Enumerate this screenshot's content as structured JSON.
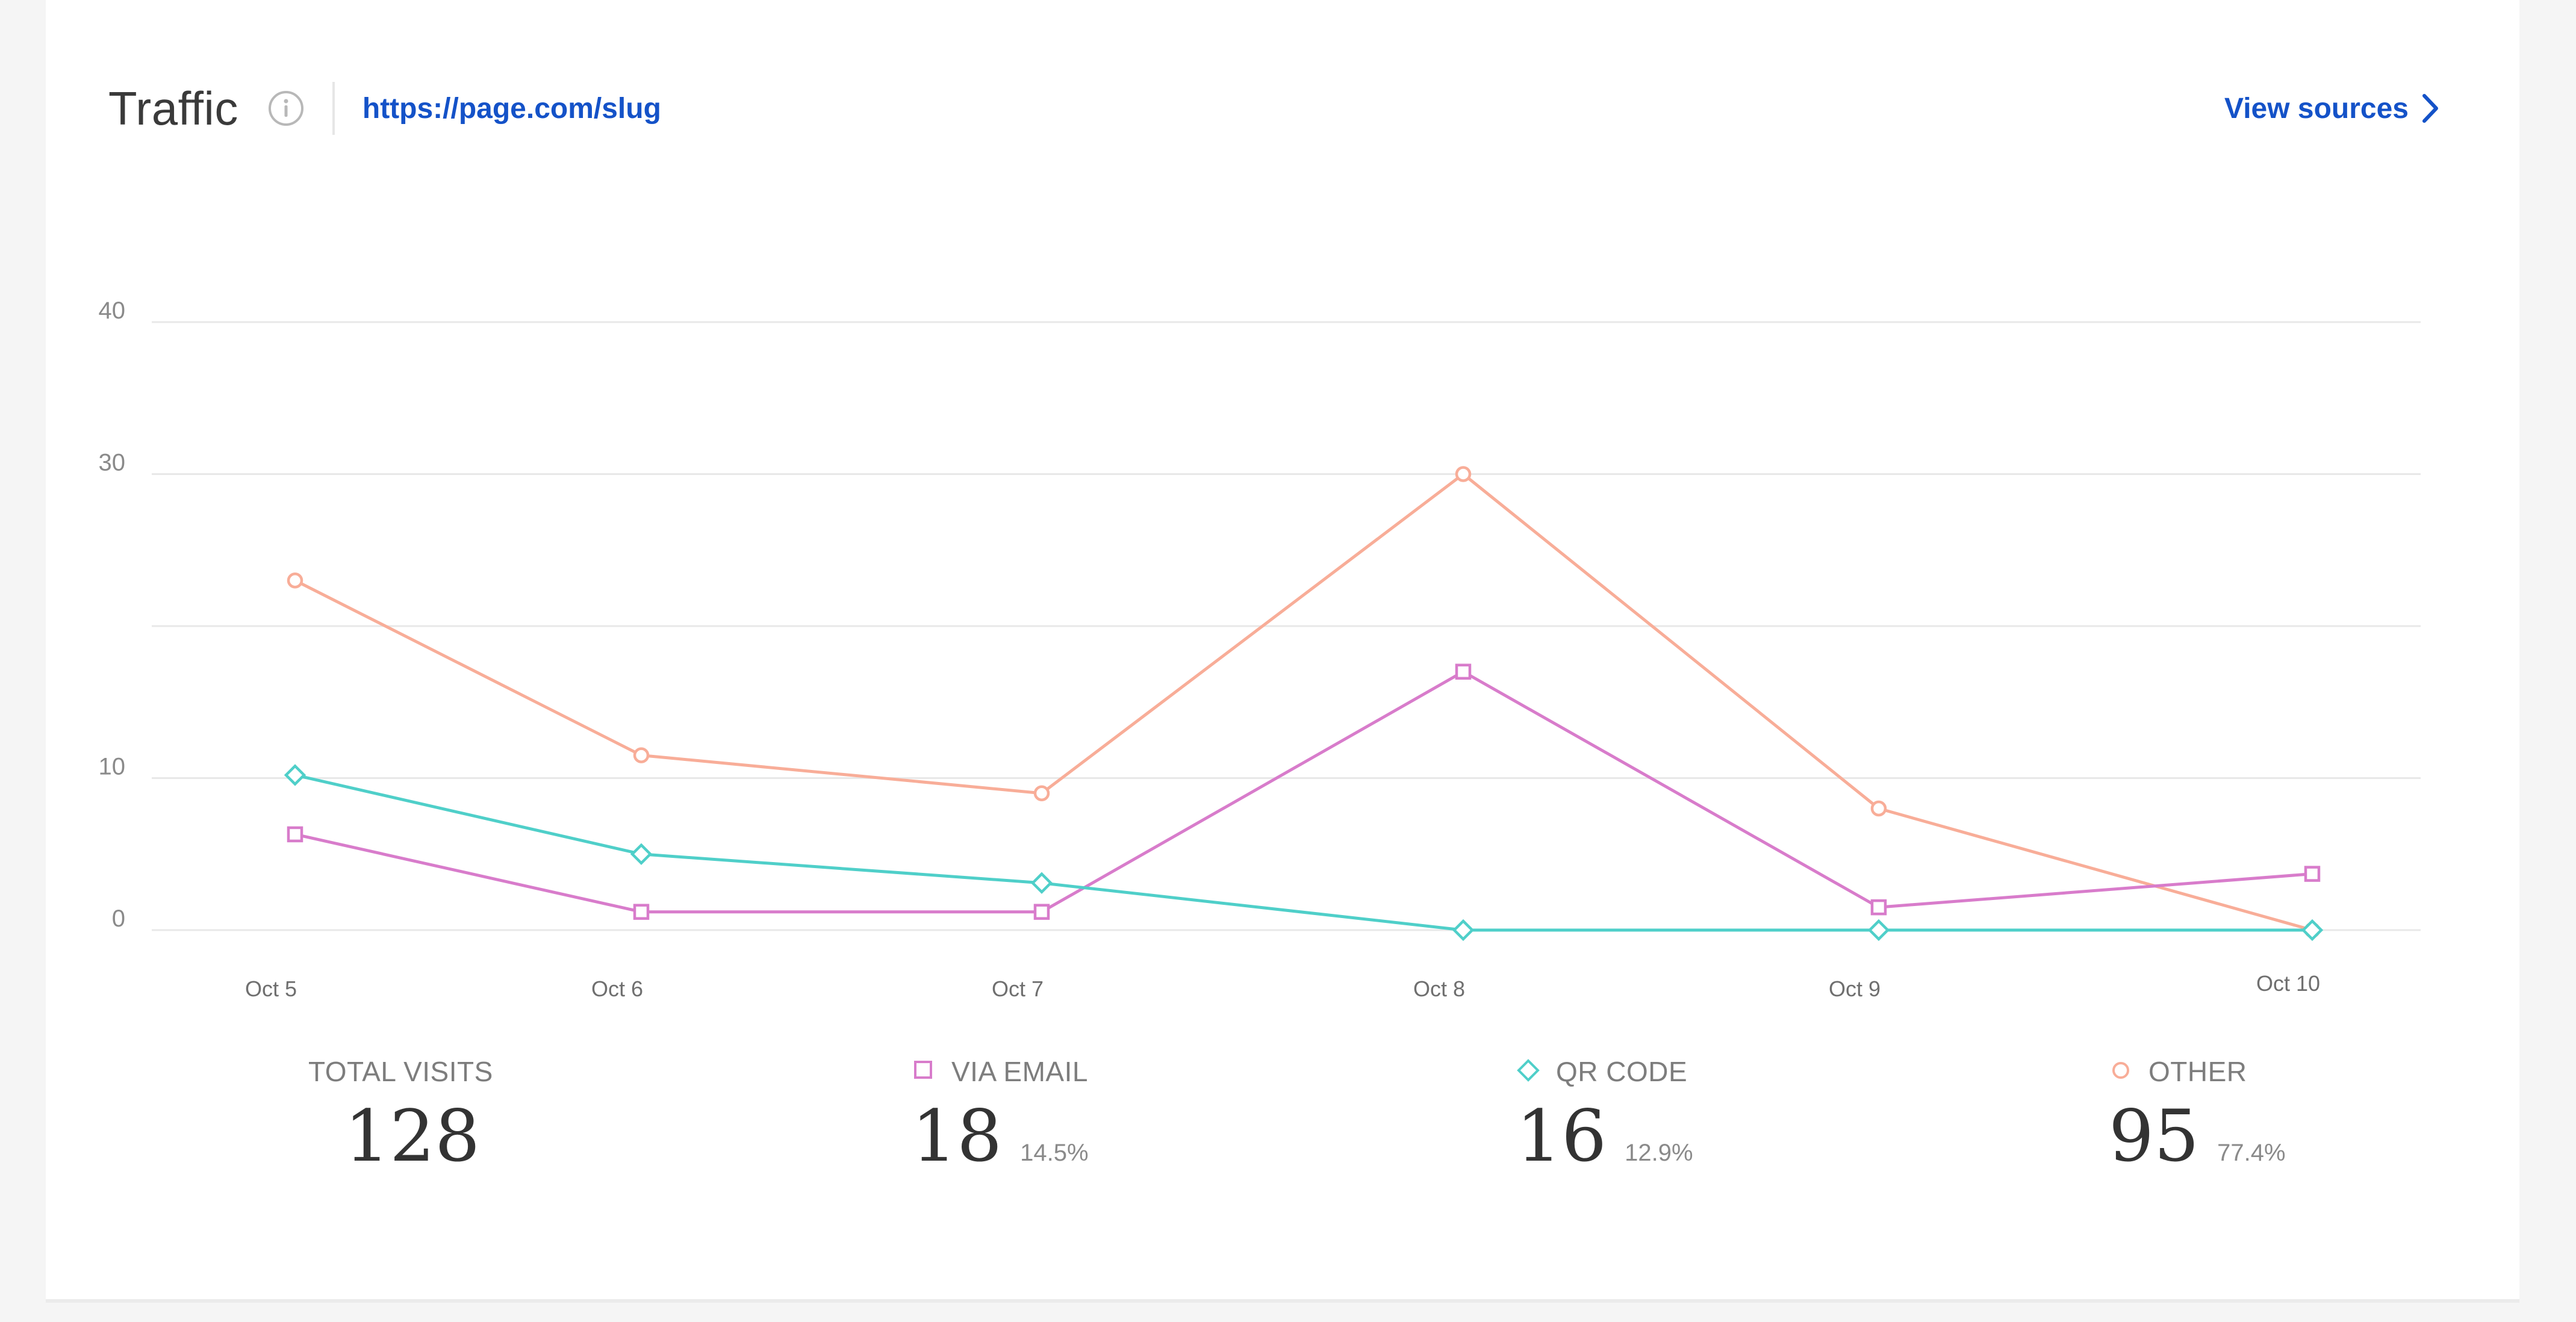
{
  "header": {
    "title": "Traffic",
    "link": "https://page.com/slug",
    "view_sources_label": "View sources"
  },
  "icons": {
    "info": "info-icon",
    "chevron": "chevron-right-icon"
  },
  "colors": {
    "via_email": "#d87ccb",
    "qr_code": "#4fcfc9",
    "other": "#f8ad98",
    "link": "#1452c8"
  },
  "chart_data": {
    "type": "line",
    "x": [
      "Oct 5",
      "Oct 6",
      "Oct 7",
      "Oct 8",
      "Oct 9",
      "Oct 10"
    ],
    "y_ticks": [
      0,
      10,
      30,
      40
    ],
    "ylim": [
      0,
      40
    ],
    "grid": true,
    "series": [
      {
        "name": "OTHER",
        "marker": "circle",
        "values": [
          23,
          11.5,
          9,
          30,
          8,
          0
        ]
      },
      {
        "name": "VIA EMAIL",
        "marker": "square",
        "values": [
          6.3,
          1.2,
          1.2,
          17,
          1.5,
          3.7
        ]
      },
      {
        "name": "QR CODE",
        "marker": "diamond",
        "values": [
          10.2,
          5,
          3.1,
          0,
          0,
          0
        ]
      }
    ]
  },
  "stats": {
    "total": {
      "label": "TOTAL VISITS",
      "value": "128"
    },
    "email": {
      "label": "VIA EMAIL",
      "value": "18",
      "pct": "14.5%"
    },
    "qr": {
      "label": "QR CODE",
      "value": "16",
      "pct": "12.9%"
    },
    "other": {
      "label": "OTHER",
      "value": "95",
      "pct": "77.4%"
    }
  }
}
